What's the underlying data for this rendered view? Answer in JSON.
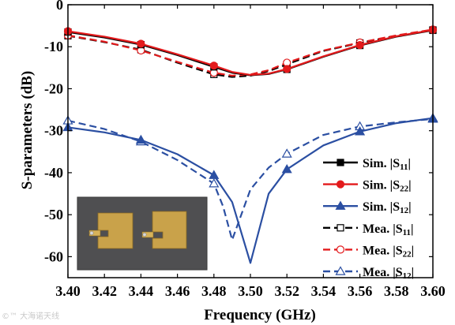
{
  "chart_data": {
    "type": "line",
    "xlabel": "Frequency (GHz)",
    "ylabel": "S-parameters (dB)",
    "xlim": [
      3.4,
      3.6
    ],
    "ylim": [
      -65,
      0
    ],
    "xticks": [
      3.4,
      3.42,
      3.44,
      3.46,
      3.48,
      3.5,
      3.52,
      3.54,
      3.56,
      3.58,
      3.6
    ],
    "xtick_labels": [
      "3.40",
      "3.42",
      "3.44",
      "3.46",
      "3.48",
      "3.50",
      "3.52",
      "3.54",
      "3.56",
      "3.58",
      "3.60"
    ],
    "yticks": [
      0,
      -10,
      -20,
      -30,
      -40,
      -50,
      -60
    ],
    "ytick_labels": [
      "0",
      "-10",
      "-20",
      "-30",
      "-40",
      "-50",
      "-60"
    ],
    "grid": false,
    "legend_position": "right",
    "series": [
      {
        "name": "Sim. |S11|",
        "color": "#000000",
        "dash": "solid",
        "marker": "filled-square",
        "x": [
          3.4,
          3.42,
          3.44,
          3.46,
          3.48,
          3.49,
          3.5,
          3.51,
          3.52,
          3.54,
          3.56,
          3.58,
          3.6
        ],
        "y": [
          -6.5,
          -7.8,
          -9.5,
          -12.0,
          -14.8,
          -16.2,
          -16.8,
          -16.5,
          -15.4,
          -12.4,
          -9.7,
          -7.6,
          -6.1
        ],
        "markers_x": [
          3.4,
          3.44,
          3.48,
          3.52,
          3.56,
          3.6
        ]
      },
      {
        "name": "Sim. |S22|",
        "color": "#e31a1c",
        "dash": "solid",
        "marker": "filled-circle",
        "x": [
          3.4,
          3.42,
          3.44,
          3.46,
          3.48,
          3.49,
          3.5,
          3.51,
          3.52,
          3.54,
          3.56,
          3.58,
          3.6
        ],
        "y": [
          -6.3,
          -7.6,
          -9.3,
          -11.8,
          -14.5,
          -16.0,
          -16.7,
          -16.4,
          -15.3,
          -12.3,
          -9.6,
          -7.5,
          -6.0
        ],
        "markers_x": [
          3.4,
          3.44,
          3.48,
          3.52,
          3.56,
          3.6
        ]
      },
      {
        "name": "Sim. |S12|",
        "color": "#2b4fa2",
        "dash": "solid",
        "marker": "filled-triangle",
        "x": [
          3.4,
          3.42,
          3.44,
          3.46,
          3.48,
          3.49,
          3.5,
          3.51,
          3.52,
          3.54,
          3.56,
          3.58,
          3.6
        ],
        "y": [
          -29.2,
          -30.4,
          -32.2,
          -35.6,
          -40.6,
          -47.0,
          -61.5,
          -45.0,
          -39.2,
          -33.5,
          -30.2,
          -28.2,
          -27.0
        ],
        "markers_x": [
          3.4,
          3.44,
          3.48,
          3.52,
          3.56,
          3.6
        ]
      },
      {
        "name": "Mea. |S11|",
        "color": "#000000",
        "dash": "dashed",
        "marker": "open-square",
        "x": [
          3.4,
          3.42,
          3.44,
          3.46,
          3.48,
          3.49,
          3.5,
          3.51,
          3.52,
          3.54,
          3.56,
          3.58,
          3.6
        ],
        "y": [
          -7.4,
          -8.9,
          -10.7,
          -13.8,
          -16.6,
          -17.2,
          -16.9,
          -15.8,
          -14.2,
          -11.0,
          -9.1,
          -7.4,
          -6.0
        ],
        "markers_x": [
          3.4,
          3.44,
          3.48,
          3.52,
          3.56,
          3.6
        ]
      },
      {
        "name": "Mea. |S22|",
        "color": "#e31a1c",
        "dash": "dashed",
        "marker": "open-circle",
        "x": [
          3.4,
          3.42,
          3.44,
          3.46,
          3.48,
          3.49,
          3.5,
          3.51,
          3.52,
          3.54,
          3.56,
          3.58,
          3.6
        ],
        "y": [
          -7.3,
          -8.8,
          -10.9,
          -13.6,
          -16.2,
          -16.9,
          -16.6,
          -15.6,
          -13.8,
          -10.9,
          -9.0,
          -7.3,
          -5.9
        ],
        "markers_x": [
          3.4,
          3.44,
          3.48,
          3.52,
          3.56,
          3.6
        ]
      },
      {
        "name": "Mea. |S12|",
        "color": "#2b4fa2",
        "dash": "dashed",
        "marker": "open-triangle",
        "x": [
          3.4,
          3.42,
          3.44,
          3.46,
          3.48,
          3.485,
          3.49,
          3.5,
          3.51,
          3.52,
          3.54,
          3.56,
          3.58,
          3.6
        ],
        "y": [
          -27.6,
          -29.6,
          -32.6,
          -37.0,
          -42.6,
          -48.0,
          -56.0,
          -44.0,
          -38.8,
          -35.5,
          -31.0,
          -29.0,
          -28.0,
          -27.2
        ],
        "markers_x": [
          3.4,
          3.44,
          3.48,
          3.52,
          3.56,
          3.6
        ]
      }
    ],
    "legend_labels": [
      {
        "prefix": "Sim. |S",
        "sub": "11",
        "suffix": "|"
      },
      {
        "prefix": "Sim. |S",
        "sub": "22",
        "suffix": "|"
      },
      {
        "prefix": "Sim. |S",
        "sub": "12",
        "suffix": "|"
      },
      {
        "prefix": "Mea. |S",
        "sub": "11",
        "suffix": "|"
      },
      {
        "prefix": "Mea. |S",
        "sub": "22",
        "suffix": "|"
      },
      {
        "prefix": "Mea. |S",
        "sub": "12",
        "suffix": "|"
      }
    ],
    "inset": {
      "kind": "photo",
      "subject": "two-port antenna prototype board"
    }
  },
  "watermark": "©™ 大海诺天线"
}
